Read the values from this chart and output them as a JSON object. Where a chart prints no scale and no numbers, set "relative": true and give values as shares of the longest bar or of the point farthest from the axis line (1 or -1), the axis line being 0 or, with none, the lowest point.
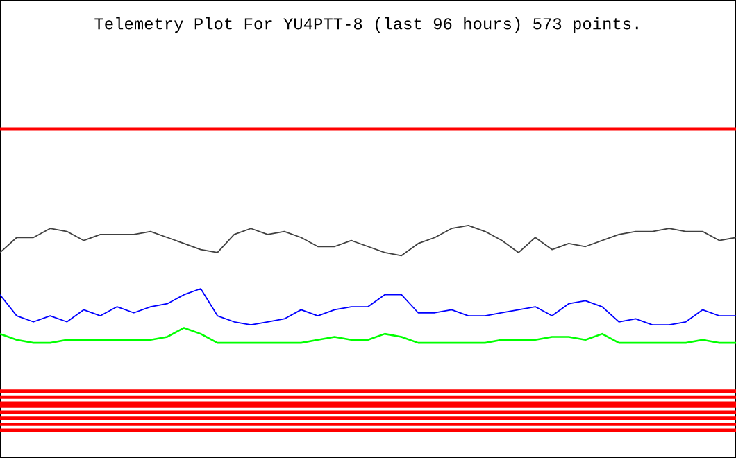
{
  "chart_data": {
    "type": "line",
    "title": "Telemetry Plot For YU4PTT-8 (last 96 hours) 573 points.",
    "relative": true,
    "marker": "none",
    "line_style": "solid",
    "categories": [
      null,
      null,
      null,
      null,
      null,
      null,
      null,
      null,
      null,
      null,
      null,
      null,
      null,
      null,
      null,
      null,
      null,
      null,
      null,
      null,
      null,
      null,
      null,
      null,
      null,
      null,
      null,
      null,
      null,
      null,
      null,
      null,
      null,
      null,
      null,
      null,
      null,
      null,
      null,
      null,
      null,
      null,
      null,
      null,
      null
    ],
    "series": [
      {
        "color": "#ff0000",
        "values": [
          1,
          1,
          1,
          1,
          1,
          1,
          1,
          1,
          1,
          1,
          1,
          1,
          1,
          1,
          1,
          1,
          1,
          1,
          1,
          1,
          1,
          1,
          1,
          1,
          1,
          1,
          1,
          1,
          1,
          1,
          1,
          1,
          1,
          1,
          1,
          1,
          1,
          1,
          1,
          1,
          1,
          1,
          1,
          1,
          1
        ]
      },
      {
        "color": "#404040",
        "values": [
          0.59,
          0.64,
          0.64,
          0.67,
          0.66,
          0.63,
          0.65,
          0.65,
          0.65,
          0.66,
          0.64,
          0.62,
          0.6,
          0.59,
          0.65,
          0.67,
          0.65,
          0.66,
          0.64,
          0.61,
          0.61,
          0.63,
          0.61,
          0.59,
          0.58,
          0.62,
          0.64,
          0.67,
          0.68,
          0.66,
          0.63,
          0.59,
          0.64,
          0.6,
          0.62,
          0.61,
          0.63,
          0.65,
          0.66,
          0.66,
          0.67,
          0.66,
          0.66,
          0.63,
          0.64
        ]
      },
      {
        "color": "#0000ff",
        "values": [
          0.45,
          0.38,
          0.36,
          0.38,
          0.36,
          0.4,
          0.38,
          0.41,
          0.39,
          0.41,
          0.42,
          0.45,
          0.47,
          0.38,
          0.36,
          0.35,
          0.36,
          0.37,
          0.4,
          0.38,
          0.4,
          0.41,
          0.41,
          0.45,
          0.45,
          0.39,
          0.39,
          0.4,
          0.38,
          0.38,
          0.39,
          0.4,
          0.41,
          0.38,
          0.42,
          0.43,
          0.41,
          0.36,
          0.37,
          0.35,
          0.35,
          0.36,
          0.4,
          0.38,
          0.38
        ]
      },
      {
        "color": "#00ff00",
        "values": [
          0.32,
          0.3,
          0.29,
          0.29,
          0.3,
          0.3,
          0.3,
          0.3,
          0.3,
          0.3,
          0.31,
          0.34,
          0.32,
          0.29,
          0.29,
          0.29,
          0.29,
          0.29,
          0.29,
          0.3,
          0.31,
          0.3,
          0.3,
          0.32,
          0.31,
          0.29,
          0.29,
          0.29,
          0.29,
          0.29,
          0.3,
          0.3,
          0.3,
          0.31,
          0.31,
          0.3,
          0.32,
          0.29,
          0.29,
          0.29,
          0.29,
          0.29,
          0.3,
          0.29,
          0.29
        ]
      },
      {
        "color": "#ff0000",
        "values": [
          0.13,
          0.13,
          0.13,
          0.13,
          0.13,
          0.13,
          0.13,
          0.13,
          0.13,
          0.13,
          0.13,
          0.13,
          0.13,
          0.13,
          0.13,
          0.13,
          0.13,
          0.13,
          0.13,
          0.13,
          0.13,
          0.13,
          0.13,
          0.13,
          0.13,
          0.13,
          0.13,
          0.13,
          0.13,
          0.13,
          0.13,
          0.13,
          0.13,
          0.13,
          0.13,
          0.13,
          0.13,
          0.13,
          0.13,
          0.13,
          0.13,
          0.13,
          0.13,
          0.13,
          0.13
        ]
      },
      {
        "color": "#ff0000",
        "values": [
          0.11,
          0.11,
          0.11,
          0.11,
          0.11,
          0.11,
          0.11,
          0.11,
          0.11,
          0.11,
          0.11,
          0.11,
          0.11,
          0.11,
          0.11,
          0.11,
          0.11,
          0.11,
          0.11,
          0.11,
          0.11,
          0.11,
          0.11,
          0.11,
          0.11,
          0.11,
          0.11,
          0.11,
          0.11,
          0.11,
          0.11,
          0.11,
          0.11,
          0.11,
          0.11,
          0.11,
          0.11,
          0.11,
          0.11,
          0.11,
          0.11,
          0.11,
          0.11,
          0.11,
          0.11
        ]
      },
      {
        "color": "#ff0000",
        "values": [
          0.09,
          0.09,
          0.09,
          0.09,
          0.09,
          0.09,
          0.09,
          0.09,
          0.09,
          0.09,
          0.09,
          0.09,
          0.09,
          0.09,
          0.09,
          0.09,
          0.09,
          0.09,
          0.09,
          0.09,
          0.09,
          0.09,
          0.09,
          0.09,
          0.09,
          0.09,
          0.09,
          0.09,
          0.09,
          0.09,
          0.09,
          0.09,
          0.09,
          0.09,
          0.09,
          0.09,
          0.09,
          0.09,
          0.09,
          0.09,
          0.09,
          0.09,
          0.09,
          0.09,
          0.09
        ]
      },
      {
        "color": "#ff0000",
        "values": [
          0.08,
          0.08,
          0.08,
          0.08,
          0.08,
          0.08,
          0.08,
          0.08,
          0.08,
          0.08,
          0.08,
          0.08,
          0.08,
          0.08,
          0.08,
          0.08,
          0.08,
          0.08,
          0.08,
          0.08,
          0.08,
          0.08,
          0.08,
          0.08,
          0.08,
          0.08,
          0.08,
          0.08,
          0.08,
          0.08,
          0.08,
          0.08,
          0.08,
          0.08,
          0.08,
          0.08,
          0.08,
          0.08,
          0.08,
          0.08,
          0.08,
          0.08,
          0.08,
          0.08,
          0.08
        ]
      },
      {
        "color": "#ff0000",
        "values": [
          0.06,
          0.06,
          0.06,
          0.06,
          0.06,
          0.06,
          0.06,
          0.06,
          0.06,
          0.06,
          0.06,
          0.06,
          0.06,
          0.06,
          0.06,
          0.06,
          0.06,
          0.06,
          0.06,
          0.06,
          0.06,
          0.06,
          0.06,
          0.06,
          0.06,
          0.06,
          0.06,
          0.06,
          0.06,
          0.06,
          0.06,
          0.06,
          0.06,
          0.06,
          0.06,
          0.06,
          0.06,
          0.06,
          0.06,
          0.06,
          0.06,
          0.06,
          0.06,
          0.06,
          0.06
        ]
      },
      {
        "color": "#ff0000",
        "values": [
          0.04,
          0.04,
          0.04,
          0.04,
          0.04,
          0.04,
          0.04,
          0.04,
          0.04,
          0.04,
          0.04,
          0.04,
          0.04,
          0.04,
          0.04,
          0.04,
          0.04,
          0.04,
          0.04,
          0.04,
          0.04,
          0.04,
          0.04,
          0.04,
          0.04,
          0.04,
          0.04,
          0.04,
          0.04,
          0.04,
          0.04,
          0.04,
          0.04,
          0.04,
          0.04,
          0.04,
          0.04,
          0.04,
          0.04,
          0.04,
          0.04,
          0.04,
          0.04,
          0.04,
          0.04
        ]
      },
      {
        "color": "#ff0000",
        "values": [
          0.02,
          0.02,
          0.02,
          0.02,
          0.02,
          0.02,
          0.02,
          0.02,
          0.02,
          0.02,
          0.02,
          0.02,
          0.02,
          0.02,
          0.02,
          0.02,
          0.02,
          0.02,
          0.02,
          0.02,
          0.02,
          0.02,
          0.02,
          0.02,
          0.02,
          0.02,
          0.02,
          0.02,
          0.02,
          0.02,
          0.02,
          0.02,
          0.02,
          0.02,
          0.02,
          0.02,
          0.02,
          0.02,
          0.02,
          0.02,
          0.02,
          0.02,
          0.02,
          0.02,
          0.02
        ]
      },
      {
        "color": "#ff0000",
        "values": [
          0,
          0,
          0,
          0,
          0,
          0,
          0,
          0,
          0,
          0,
          0,
          0,
          0,
          0,
          0,
          0,
          0,
          0,
          0,
          0,
          0,
          0,
          0,
          0,
          0,
          0,
          0,
          0,
          0,
          0,
          0,
          0,
          0,
          0,
          0,
          0,
          0,
          0,
          0,
          0,
          0,
          0,
          0,
          0,
          0
        ]
      }
    ]
  }
}
